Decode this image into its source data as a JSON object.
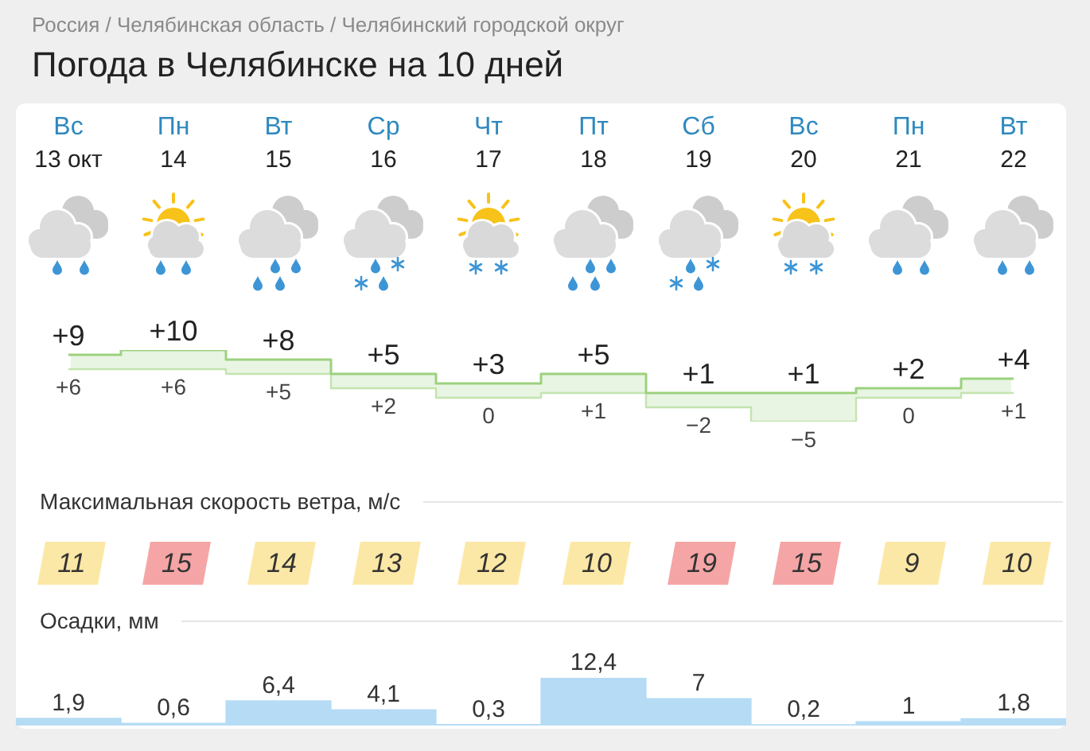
{
  "chart_data": [
    {
      "type": "step",
      "title": "Погода в Челябинске на 10 дней",
      "annotations": [
        "Россия / Челябинская область / Челябинский городской округ"
      ],
      "categories": [
        "Вс\n13 окт",
        "Пн\n14",
        "Вт\n15",
        "Ср\n16",
        "Чт\n17",
        "Пт\n18",
        "Сб\n19",
        "Вс\n20",
        "Пн\n21",
        "Вт\n22"
      ],
      "series": [
        {
          "color": "#9cd17f",
          "values": [
            9,
            10,
            8,
            5,
            3,
            5,
            1,
            1,
            2,
            4
          ],
          "value_labels": [
            "+9",
            "+10",
            "+8",
            "+5",
            "+3",
            "+5",
            "+1",
            "+1",
            "+2",
            "+4"
          ],
          "lower": [
            6,
            6,
            5,
            2,
            0,
            1,
            -2,
            -5,
            0,
            1
          ],
          "upper": [
            9,
            10,
            8,
            5,
            3,
            5,
            1,
            1,
            2,
            4
          ]
        },
        {
          "color": "#c3e4ae",
          "values": [
            6,
            6,
            5,
            2,
            0,
            1,
            -2,
            -5,
            0,
            1
          ],
          "value_labels": [
            "+6",
            "+6",
            "+5",
            "+2",
            "0",
            "+1",
            "−2",
            "−5",
            "0",
            "+1"
          ]
        }
      ],
      "marker": "none",
      "tick_labels": "x"
    },
    {
      "type": "other",
      "title": "Максимальная скорость ветра, м/с",
      "categories": [
        null,
        null,
        null,
        null,
        null,
        null,
        null,
        null,
        null,
        null
      ],
      "values": [
        11,
        15,
        14,
        13,
        12,
        10,
        19,
        15,
        9,
        10
      ],
      "colors": [
        "#fce8a6",
        "#f5a5a5",
        "#fce8a6",
        "#fce8a6",
        "#fce8a6",
        "#fce8a6",
        "#f5a5a5",
        "#f5a5a5",
        "#fce8a6",
        "#fce8a6"
      ],
      "data_labels": true
    },
    {
      "type": "bar",
      "title": "Осадки, мм",
      "categories": [
        null,
        null,
        null,
        null,
        null,
        null,
        null,
        null,
        null,
        null
      ],
      "values": [
        1.9,
        0.6,
        6.4,
        4.1,
        0.3,
        12.4,
        7,
        0.2,
        1,
        1.8
      ],
      "color": "#b6dcf5",
      "value_labels": [
        "1,9",
        "0,6",
        "6,4",
        "4,1",
        "0,3",
        "12,4",
        "7",
        "0,2",
        "1",
        "1,8"
      ],
      "tick_labels": false
    }
  ]
}
